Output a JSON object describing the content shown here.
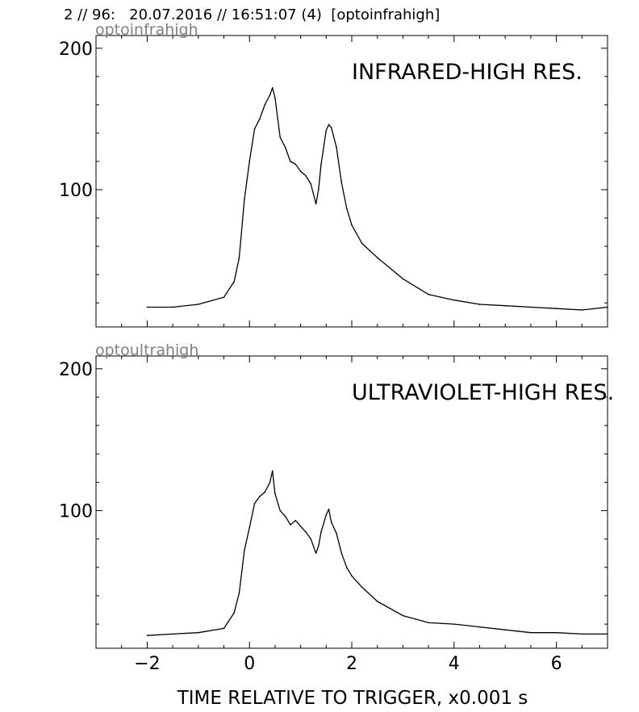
{
  "header": {
    "text": "2 // 96:   20.07.2016 // 16:51:07 (4)  [optoinfrahigh]"
  },
  "xlabel": "TIME RELATIVE TO TRIGGER,   x0.001 s",
  "xticks": [
    -2,
    0,
    2,
    4,
    6
  ],
  "xtick_labels": [
    "−2",
    "0",
    "2",
    "4",
    "6"
  ],
  "xlim": [
    -3,
    7
  ],
  "chart_data": [
    {
      "type": "line",
      "corner_label": "optoinfrahigh",
      "title": "INFRARED-HIGH RES.",
      "ylim": [
        3,
        209
      ],
      "yticks": [
        100,
        200
      ],
      "ytick_labels": [
        "100",
        "200"
      ],
      "grid": false,
      "x": [
        -2.0,
        -1.5,
        -1.0,
        -0.5,
        -0.3,
        -0.2,
        -0.1,
        0.0,
        0.1,
        0.2,
        0.3,
        0.4,
        0.45,
        0.5,
        0.6,
        0.7,
        0.8,
        0.9,
        1.0,
        1.1,
        1.2,
        1.3,
        1.35,
        1.4,
        1.5,
        1.55,
        1.6,
        1.7,
        1.8,
        1.9,
        2.0,
        2.2,
        2.5,
        3.0,
        3.5,
        4.0,
        4.5,
        5.0,
        5.5,
        6.0,
        6.5,
        7.0
      ],
      "values": [
        17,
        17,
        19,
        24,
        35,
        52,
        93,
        120,
        143,
        150,
        160,
        167,
        172,
        165,
        137,
        130,
        120,
        118,
        113,
        110,
        104,
        90,
        100,
        118,
        142,
        146,
        144,
        130,
        105,
        87,
        75,
        62,
        52,
        37,
        26,
        22,
        19,
        18,
        17,
        16,
        15,
        17
      ]
    },
    {
      "type": "line",
      "corner_label": "optoultrahigh",
      "title": "ULTRAVIOLET-HIGH RES.",
      "ylim": [
        3,
        209
      ],
      "yticks": [
        100,
        200
      ],
      "ytick_labels": [
        "100",
        "200"
      ],
      "grid": false,
      "x": [
        -2.0,
        -1.5,
        -1.0,
        -0.5,
        -0.3,
        -0.2,
        -0.1,
        0.0,
        0.1,
        0.2,
        0.3,
        0.4,
        0.45,
        0.5,
        0.6,
        0.7,
        0.8,
        0.9,
        1.0,
        1.1,
        1.2,
        1.3,
        1.35,
        1.4,
        1.5,
        1.55,
        1.6,
        1.7,
        1.8,
        1.9,
        2.0,
        2.2,
        2.5,
        3.0,
        3.5,
        4.0,
        4.5,
        5.0,
        5.5,
        6.0,
        6.5,
        7.0
      ],
      "values": [
        12,
        13,
        14,
        17,
        28,
        42,
        72,
        88,
        105,
        110,
        113,
        120,
        128,
        112,
        100,
        96,
        90,
        93,
        89,
        85,
        80,
        70,
        75,
        85,
        97,
        101,
        92,
        84,
        70,
        60,
        54,
        46,
        36,
        26,
        21,
        20,
        18,
        16,
        14,
        14,
        13,
        13
      ]
    }
  ]
}
